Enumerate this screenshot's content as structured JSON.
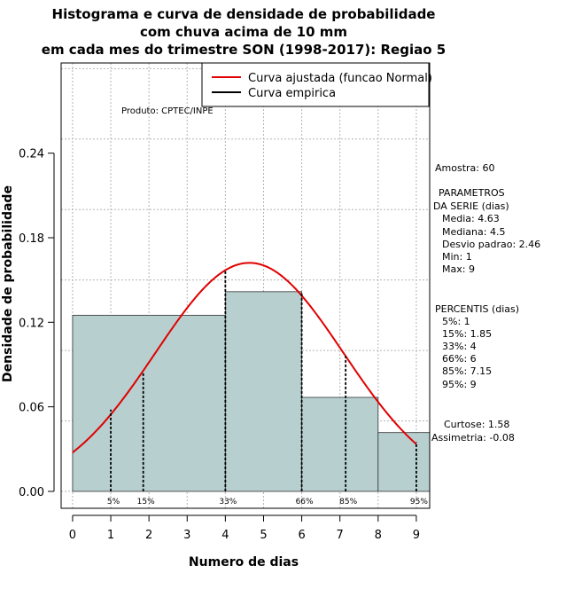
{
  "chart_data": {
    "type": "bar",
    "title_lines": [
      "Histograma e curva de densidade de probabilidade",
      "com chuva acima de 10 mm",
      "em cada mes do trimestre SON (1998-2017): Regiao 5"
    ],
    "xlabel": "Numero de dias",
    "ylabel": "Densidade de probabilidade",
    "xlim": [
      -0.3,
      9.35
    ],
    "ylim": [
      -0.012,
      0.304
    ],
    "x_ticks": [
      0,
      1,
      2,
      3,
      4,
      5,
      6,
      7,
      8,
      9
    ],
    "y_ticks": [
      0.0,
      0.06,
      0.12,
      0.18,
      0.24
    ],
    "y_tick_labels": [
      "0.00",
      "0.06",
      "0.12",
      "0.18",
      "0.24"
    ],
    "grid": true,
    "bins": [
      {
        "x0": 0,
        "x1": 4,
        "density": 0.125
      },
      {
        "x0": 4,
        "x1": 6,
        "density": 0.1417
      },
      {
        "x0": 6,
        "x1": 8,
        "density": 0.0667
      },
      {
        "x0": 8,
        "x1": 9.35,
        "density": 0.0417
      }
    ],
    "bar_color": "#b8cfcf",
    "normal_curve": {
      "mean": 4.63,
      "sd": 2.46,
      "color": "#e00000"
    },
    "percentile_lines": [
      {
        "x": 1,
        "label": "5%",
        "y_end": 0.058
      },
      {
        "x": 1.85,
        "label": "15%",
        "y_end": 0.085
      },
      {
        "x": 4,
        "label": "33%",
        "y_end": 0.157
      },
      {
        "x": 6,
        "label": "66%",
        "y_end": 0.141
      },
      {
        "x": 7.15,
        "label": "85%",
        "y_end": 0.096
      },
      {
        "x": 9,
        "label": "95%",
        "y_end": 0.035
      }
    ],
    "legend": {
      "position": "top-right",
      "items": [
        {
          "label": "Curva ajustada (funcao Normal)",
          "color": "#e00000"
        },
        {
          "label": "Curva empirica",
          "color": "#000000"
        }
      ]
    },
    "product_note": "Produto: CPTEC/INPE",
    "side_text": [
      "Amostra: 60",
      "PARAMETROS",
      "DA SERIE (dias)",
      "Media: 4.63",
      "Mediana: 4.5",
      "Desvio padrao: 2.46",
      "Min: 1",
      "Max: 9",
      "PERCENTIS (dias)",
      "5%: 1",
      "15%: 1.85",
      "33%: 4",
      "66%: 6",
      "85%: 7.15",
      "95%: 9",
      "Curtose: 1.58",
      "Assimetria: -0.08"
    ]
  }
}
